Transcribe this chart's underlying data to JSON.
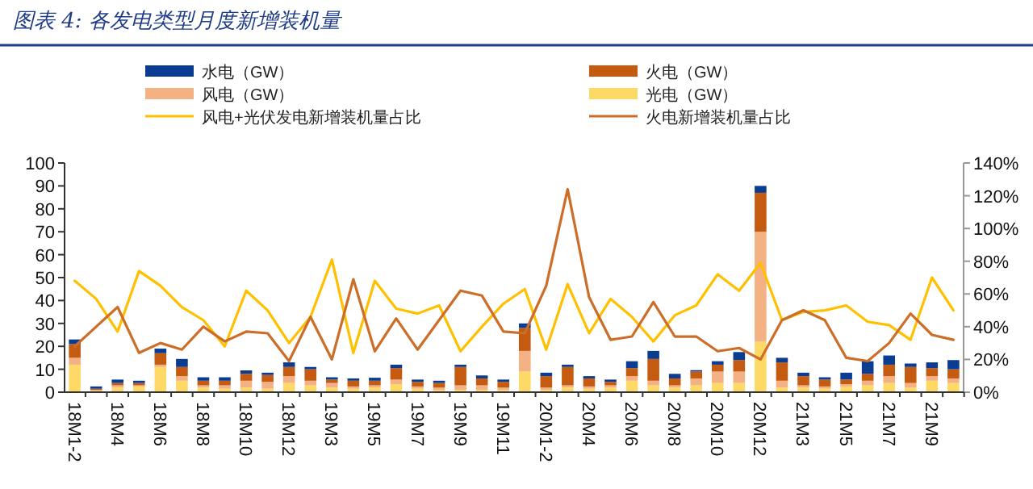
{
  "chart_data": {
    "type": "bar",
    "stacked": true,
    "title": "图表 4: 各发电类型月度新增装机量",
    "legend": "top",
    "categories": [
      "18M1-2",
      null,
      "18M4",
      null,
      "18M6",
      null,
      "18M8",
      null,
      "18M10",
      null,
      "18M12",
      null,
      "19M3",
      null,
      "19M5",
      null,
      "19M7",
      null,
      "19M9",
      null,
      "19M11",
      null,
      "20M1-2",
      null,
      "20M4",
      null,
      "20M6",
      null,
      "20M8",
      null,
      "20M10",
      null,
      "20M12",
      null,
      "21M3",
      null,
      "21M5",
      null,
      "21M7",
      null,
      "21M9",
      null
    ],
    "ylim": [
      0,
      100
    ],
    "yticks": [
      0,
      10,
      20,
      30,
      40,
      50,
      60,
      70,
      80,
      90,
      100
    ],
    "y2lim": [
      0,
      140
    ],
    "y2ticks": [
      {
        "value": 0,
        "label": "0%"
      },
      {
        "value": 20,
        "label": "20%"
      },
      {
        "value": 40,
        "label": "40%"
      },
      {
        "value": 60,
        "label": "60%"
      },
      {
        "value": 80,
        "label": "80%"
      },
      {
        "value": 100,
        "label": "100%"
      },
      {
        "value": 120,
        "label": "120%"
      },
      {
        "value": 140,
        "label": "140%"
      }
    ],
    "series": [
      {
        "name": "光电（GW）",
        "color": "#ffd966",
        "values": [
          12,
          0.5,
          2,
          2.5,
          11,
          5,
          2,
          1.5,
          2,
          1.5,
          4,
          3,
          2,
          1.5,
          2,
          3.5,
          1.5,
          1,
          1,
          1,
          1,
          9,
          1,
          2,
          1.5,
          2,
          5,
          3,
          2,
          3,
          4,
          4,
          22,
          2,
          2,
          1.5,
          2.5,
          3,
          4,
          2,
          5,
          4
        ]
      },
      {
        "name": "风电（GW）",
        "color": "#f4b183",
        "values": [
          3,
          0.5,
          1,
          0.5,
          1,
          2,
          1,
          1.5,
          3,
          3,
          3,
          2,
          2,
          1,
          1,
          2,
          1,
          1,
          2,
          2,
          1,
          9,
          1,
          1,
          1,
          1,
          2,
          2,
          1,
          3,
          5,
          5,
          48,
          3,
          1,
          1,
          1,
          2,
          3,
          2,
          2,
          2
        ]
      },
      {
        "name": "火电（GW）",
        "color": "#c55a11",
        "values": [
          6,
          0.5,
          1,
          1,
          5,
          4,
          2,
          2,
          3,
          3,
          4,
          5,
          1.5,
          2.5,
          2,
          5,
          2,
          2,
          8,
          3,
          2.5,
          10,
          5,
          8,
          3.5,
          1.5,
          3.5,
          9.5,
          3,
          3,
          3,
          5,
          17,
          8,
          4,
          3,
          2,
          3,
          5,
          7,
          3.5,
          4
        ]
      },
      {
        "name": "水电（GW）",
        "color": "#0a3d91",
        "values": [
          2,
          1,
          1.5,
          1,
          2,
          3.5,
          1.5,
          1.5,
          1.5,
          1,
          2,
          1,
          1,
          1,
          1.3,
          1.5,
          1,
          1,
          1,
          1.3,
          1,
          2,
          1.5,
          1,
          1,
          1,
          3,
          3.5,
          2,
          0.6,
          1.5,
          3.5,
          3,
          2,
          1.5,
          1,
          3,
          5.5,
          4,
          1.5,
          2.5,
          4
        ]
      },
      {
        "name": "风电+光伏发电新增装机量占比",
        "type": "line",
        "axis": "y2",
        "color": "#ffc000",
        "values": [
          68,
          57,
          37,
          74,
          65,
          52,
          44,
          28,
          62,
          50,
          30,
          46,
          81,
          24,
          68,
          51,
          48,
          53,
          25,
          40,
          54,
          63,
          26,
          66,
          36,
          57,
          46,
          31,
          47,
          53,
          72,
          62,
          79,
          44,
          49,
          50,
          53,
          43,
          41,
          32,
          70,
          50
        ]
      },
      {
        "name": "火电新增装机量占比",
        "type": "line",
        "axis": "y2",
        "color": "#cc6d28",
        "values": [
          28,
          40,
          52,
          24,
          30,
          26,
          40,
          31,
          37,
          36,
          19,
          46,
          20,
          69,
          25,
          45,
          26,
          44,
          62,
          59,
          37,
          36,
          65,
          124,
          58,
          32,
          34,
          55,
          34,
          34,
          25,
          27,
          20,
          44,
          50,
          44,
          21,
          19,
          30,
          48,
          35,
          32
        ]
      }
    ]
  }
}
